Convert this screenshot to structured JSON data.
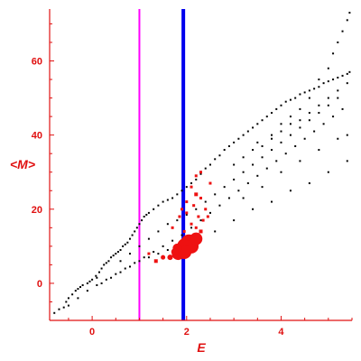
{
  "chart_data": {
    "type": "scatter",
    "title": "",
    "xlabel": "E",
    "ylabel": "<M>",
    "xlim": [
      -0.9,
      5.5
    ],
    "ylim": [
      -10,
      74
    ],
    "xticks": [
      0,
      2,
      4
    ],
    "yticks": [
      0,
      20,
      40,
      60
    ],
    "grid": false,
    "colors": {
      "axis": "#e01010",
      "dots": "#000000",
      "highlight": "#ee1111",
      "vline_1": "#ff00ff",
      "vline_2": "#0000ee"
    },
    "vlines": [
      {
        "x": 1.0,
        "color": "#ff00ff"
      },
      {
        "x": 1.93,
        "color": "#0000ee"
      }
    ],
    "series": [
      {
        "values": [
          [
            -0.8,
            -8
          ],
          [
            -0.7,
            -7
          ],
          [
            -0.6,
            -6.5
          ],
          [
            -0.55,
            -5
          ],
          [
            -0.5,
            -4
          ],
          [
            -0.42,
            -3
          ],
          [
            -0.35,
            -2
          ],
          [
            -0.3,
            -1.5
          ],
          [
            -0.25,
            -1
          ],
          [
            -0.2,
            -0.5
          ],
          [
            -0.1,
            0
          ],
          [
            -0.05,
            0.5
          ],
          [
            0.0,
            1
          ],
          [
            0.08,
            2
          ],
          [
            0.1,
            1.5
          ],
          [
            0.15,
            3
          ],
          [
            0.2,
            4
          ],
          [
            0.25,
            5
          ],
          [
            0.3,
            5.5
          ],
          [
            0.35,
            6
          ],
          [
            0.4,
            7
          ],
          [
            0.45,
            7.5
          ],
          [
            0.5,
            8
          ],
          [
            0.55,
            8.5
          ],
          [
            0.6,
            9
          ],
          [
            0.65,
            10
          ],
          [
            0.7,
            10.5
          ],
          [
            0.75,
            11
          ],
          [
            0.8,
            12
          ],
          [
            0.85,
            13
          ],
          [
            0.9,
            14
          ],
          [
            0.95,
            15
          ],
          [
            1.0,
            16
          ],
          [
            1.05,
            17
          ],
          [
            1.1,
            18
          ],
          [
            1.15,
            18.5
          ],
          [
            1.2,
            19
          ],
          [
            1.3,
            20
          ],
          [
            1.4,
            21
          ],
          [
            1.5,
            22
          ],
          [
            1.6,
            22.5
          ],
          [
            1.7,
            23
          ],
          [
            1.8,
            24
          ],
          [
            1.9,
            25
          ],
          [
            2.0,
            26
          ],
          [
            2.1,
            27
          ],
          [
            2.2,
            28
          ],
          [
            2.3,
            29.5
          ],
          [
            2.4,
            31
          ],
          [
            2.5,
            32
          ],
          [
            2.6,
            33.5
          ],
          [
            2.7,
            34.5
          ],
          [
            2.8,
            36
          ],
          [
            2.9,
            37
          ],
          [
            3.0,
            38
          ],
          [
            3.1,
            39
          ],
          [
            3.2,
            40
          ],
          [
            3.3,
            41
          ],
          [
            3.4,
            42
          ],
          [
            3.5,
            43
          ],
          [
            3.6,
            44
          ],
          [
            3.7,
            45
          ],
          [
            3.8,
            46
          ],
          [
            3.9,
            47
          ],
          [
            4.0,
            48
          ],
          [
            4.1,
            49
          ],
          [
            4.2,
            49.5
          ],
          [
            4.3,
            50
          ],
          [
            4.4,
            51
          ],
          [
            4.5,
            51.5
          ],
          [
            4.6,
            52
          ],
          [
            4.7,
            52.5
          ],
          [
            4.8,
            53
          ],
          [
            4.9,
            54
          ],
          [
            5.0,
            54.5
          ],
          [
            5.1,
            55
          ],
          [
            5.2,
            55.5
          ],
          [
            5.3,
            56
          ],
          [
            5.4,
            56.5
          ],
          [
            5.45,
            57
          ],
          [
            -0.5,
            -6
          ],
          [
            -0.3,
            -4
          ],
          [
            -0.1,
            -2
          ],
          [
            0.1,
            -0.5
          ],
          [
            0.3,
            1
          ],
          [
            0.5,
            2.5
          ],
          [
            0.7,
            4
          ],
          [
            0.9,
            5.5
          ],
          [
            1.1,
            7
          ],
          [
            1.3,
            8.5
          ],
          [
            1.5,
            10
          ],
          [
            1.7,
            11.5
          ],
          [
            1.9,
            13
          ],
          [
            2.1,
            15
          ],
          [
            2.3,
            17
          ],
          [
            2.5,
            19
          ],
          [
            2.7,
            21
          ],
          [
            2.9,
            23
          ],
          [
            3.1,
            25
          ],
          [
            3.3,
            27
          ],
          [
            3.5,
            29
          ],
          [
            3.7,
            31
          ],
          [
            3.9,
            33
          ],
          [
            4.1,
            35
          ],
          [
            4.3,
            37
          ],
          [
            4.5,
            39
          ],
          [
            4.7,
            41
          ],
          [
            4.9,
            43
          ],
          [
            5.1,
            45
          ],
          [
            5.3,
            47
          ],
          [
            0.2,
            0
          ],
          [
            0.4,
            1.5
          ],
          [
            0.6,
            3
          ],
          [
            0.8,
            4.5
          ],
          [
            1.0,
            6
          ],
          [
            1.2,
            7
          ],
          [
            1.4,
            8
          ],
          [
            1.6,
            9
          ],
          [
            1.8,
            10
          ],
          [
            2.2,
            12
          ],
          [
            2.6,
            14
          ],
          [
            3.0,
            17
          ],
          [
            3.4,
            20
          ],
          [
            3.8,
            22
          ],
          [
            4.2,
            25
          ],
          [
            4.6,
            27
          ],
          [
            5.0,
            30
          ],
          [
            5.4,
            33
          ],
          [
            0.6,
            6
          ],
          [
            0.8,
            8
          ],
          [
            1.0,
            10
          ],
          [
            1.2,
            12
          ],
          [
            1.4,
            14
          ],
          [
            1.6,
            16
          ],
          [
            1.8,
            17
          ],
          [
            2.0,
            18.5
          ],
          [
            2.2,
            20
          ],
          [
            2.4,
            22
          ],
          [
            2.6,
            24
          ],
          [
            2.8,
            26
          ],
          [
            3.0,
            28
          ],
          [
            3.2,
            30
          ],
          [
            3.4,
            32
          ],
          [
            3.6,
            34
          ],
          [
            3.8,
            36
          ],
          [
            4.0,
            38
          ],
          [
            4.2,
            40
          ],
          [
            4.4,
            42
          ],
          [
            4.6,
            44
          ],
          [
            4.8,
            46
          ],
          [
            5.0,
            48
          ],
          [
            5.2,
            50
          ],
          [
            3.5,
            38
          ],
          [
            3.8,
            40
          ],
          [
            4.0,
            43
          ],
          [
            4.2,
            45
          ],
          [
            4.4,
            47
          ],
          [
            4.6,
            50
          ],
          [
            4.8,
            55
          ],
          [
            5.0,
            58
          ],
          [
            5.1,
            62
          ],
          [
            5.2,
            65
          ],
          [
            5.3,
            68
          ],
          [
            5.4,
            71
          ],
          [
            5.45,
            73
          ],
          [
            3.2,
            23
          ],
          [
            3.6,
            26
          ],
          [
            4.0,
            30
          ],
          [
            4.4,
            33
          ],
          [
            4.8,
            36
          ],
          [
            5.2,
            39
          ],
          [
            5.4,
            40
          ],
          [
            3.0,
            32
          ],
          [
            3.2,
            34
          ],
          [
            3.4,
            36
          ],
          [
            3.6,
            37
          ],
          [
            3.8,
            39
          ],
          [
            4.0,
            41
          ],
          [
            4.2,
            43
          ],
          [
            4.4,
            44
          ],
          [
            4.6,
            46
          ],
          [
            4.8,
            48
          ],
          [
            5.0,
            50
          ],
          [
            5.2,
            52
          ],
          [
            5.4,
            54
          ]
        ]
      },
      {
        "values": [
          [
            1.82,
            8,
            7
          ],
          [
            1.9,
            9,
            8
          ],
          [
            1.97,
            10,
            9
          ],
          [
            2.05,
            11,
            9
          ],
          [
            2.1,
            10,
            8
          ],
          [
            2.2,
            12,
            7
          ],
          [
            1.95,
            8.5,
            8
          ],
          [
            1.8,
            9.5,
            5
          ],
          [
            1.75,
            8.5,
            4
          ],
          [
            1.65,
            7,
            3
          ],
          [
            1.5,
            7,
            2.5
          ],
          [
            1.35,
            6,
            2
          ],
          [
            1.2,
            8,
            1.5
          ],
          [
            2.2,
            24,
            2
          ],
          [
            2.3,
            23,
            1.5
          ],
          [
            2.15,
            21,
            1.5
          ],
          [
            2.0,
            22,
            1.5
          ],
          [
            2.25,
            18,
            1.5
          ],
          [
            2.35,
            17,
            1.5
          ],
          [
            2.45,
            18,
            1.5
          ],
          [
            2.2,
            15,
            1.5
          ],
          [
            2.1,
            16,
            1.5
          ],
          [
            2.3,
            14,
            2
          ],
          [
            1.95,
            14,
            1.5
          ],
          [
            2.0,
            19,
            1.5
          ],
          [
            2.4,
            20,
            1.5
          ],
          [
            2.3,
            30,
            1.5
          ],
          [
            2.2,
            29,
            1.5
          ],
          [
            2.5,
            27,
            1.5
          ],
          [
            2.1,
            26,
            1.5
          ],
          [
            1.9,
            20,
            1.5
          ],
          [
            2.15,
            13,
            1.5
          ],
          [
            2.05,
            12,
            2
          ],
          [
            1.7,
            15,
            1.5
          ],
          [
            1.85,
            18,
            1.5
          ]
        ]
      }
    ]
  }
}
